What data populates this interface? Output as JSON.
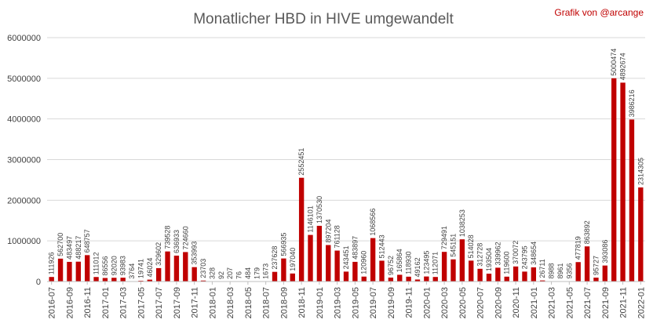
{
  "chart_data": {
    "type": "bar",
    "title": "Monatlicher HBD in HIVE umgewandelt",
    "credit": "Grafik von @arcange",
    "xlabel": "",
    "ylabel": "",
    "ylim": [
      0,
      6000000
    ],
    "yticks": [
      0,
      1000000,
      2000000,
      3000000,
      4000000,
      5000000,
      6000000
    ],
    "ytick_labels": [
      "0",
      "1000000",
      "2000000",
      "3000000",
      "4000000",
      "5000000",
      "6000000"
    ],
    "grid": true,
    "bar_color": "#c00000",
    "categories": [
      "2016-07",
      "2016-08",
      "2016-09",
      "2016-10",
      "2016-11",
      "2016-12",
      "2017-01",
      "2017-02",
      "2017-03",
      "2017-04",
      "2017-05",
      "2017-06",
      "2017-07",
      "2017-08",
      "2017-09",
      "2017-10",
      "2017-11",
      "2017-12",
      "2018-01",
      "2018-02",
      "2018-03",
      "2018-04",
      "2018-05",
      "2018-06",
      "2018-07",
      "2018-08",
      "2018-09",
      "2018-10",
      "2018-11",
      "2018-12",
      "2019-01",
      "2019-02",
      "2019-03",
      "2019-04",
      "2019-05",
      "2019-06",
      "2019-07",
      "2019-08",
      "2019-09",
      "2019-10",
      "2019-11",
      "2019-12",
      "2020-01",
      "2020-02",
      "2020-03",
      "2020-04",
      "2020-05",
      "2020-06",
      "2020-07",
      "2020-08",
      "2020-09",
      "2020-10",
      "2020-11",
      "2020-12",
      "2021-01",
      "2021-02",
      "2021-03",
      "2021-04",
      "2021-05",
      "2021-06",
      "2021-07",
      "2021-08",
      "2021-09",
      "2021-10",
      "2021-11",
      "2021-12",
      "2022-01"
    ],
    "values": [
      111926,
      562700,
      483497,
      488217,
      648757,
      111012,
      86556,
      92020,
      93983,
      3764,
      19741,
      46024,
      329602,
      739528,
      636933,
      724660,
      353993,
      23703,
      328,
      92,
      207,
      76,
      484,
      179,
      1673,
      237628,
      566935,
      197040,
      2552451,
      1146101,
      1370530,
      897204,
      761128,
      243451,
      483897,
      120960,
      1068566,
      512443,
      96752,
      165864,
      118930,
      49162,
      123495,
      112071,
      729491,
      545151,
      1038253,
      514028,
      312728,
      193504,
      339962,
      119600,
      370072,
      243795,
      348654,
      26711,
      8988,
      8961,
      9356,
      477819,
      863892,
      95727,
      393086,
      5000474,
      4892674,
      3986216,
      2314305
    ],
    "labels": [
      "111926",
      "562700",
      "483497",
      "488217",
      "648757",
      "111012",
      "86556",
      "92020",
      "93983",
      "3764",
      "19741",
      "46024",
      "329602",
      "739528",
      "636933",
      "724660",
      "353993",
      "23703",
      "328",
      "92",
      "207",
      "76",
      "484",
      "179",
      "1673",
      "237628",
      "566935",
      "197040",
      "2552451",
      "1146101",
      "1370530",
      "897204",
      "761128",
      "243451",
      "483897",
      "120960",
      "1068566",
      "512443",
      "96752",
      "165864",
      "118930",
      "49162",
      "123495",
      "112071",
      "729491",
      "545151",
      "1038253",
      "514028",
      "312728",
      "193504",
      "339962",
      "119600",
      "370072",
      "243795",
      "348654",
      "26711",
      "8988",
      "8961",
      "9356",
      "477819",
      "863892",
      "95727",
      "393086",
      "5000474",
      "4892674",
      "3986216",
      "2314305"
    ],
    "xtick_labels_shown": [
      "2016-07",
      "2016-09",
      "2016-11",
      "2017-01",
      "2017-03",
      "2017-05",
      "2017-07",
      "2017-09",
      "2017-11",
      "2018-01",
      "2018-03",
      "2018-05",
      "2018-07",
      "2018-09",
      "2018-11",
      "2019-01",
      "2019-03",
      "2019-05",
      "2019-07",
      "2019-09",
      "2019-11",
      "2020-01",
      "2020-03",
      "2020-05",
      "2020-07",
      "2020-09",
      "2020-11",
      "2021-01",
      "2021-03",
      "2021-05",
      "2021-07",
      "2021-09",
      "2021-11",
      "2022-01"
    ]
  }
}
